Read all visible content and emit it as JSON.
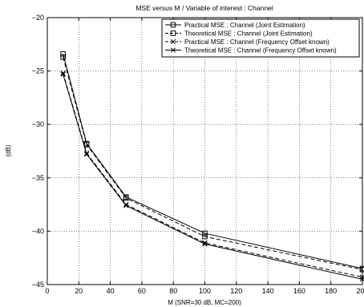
{
  "chart_data": {
    "type": "line",
    "title": "MSE versus M / Variable of interest :  Channel",
    "xlabel": "M (SNR=30 dB, MC=200)",
    "ylabel": "(dB)",
    "xlim": [
      0,
      200
    ],
    "ylim": [
      -45,
      -20
    ],
    "xticks": [
      0,
      20,
      40,
      60,
      80,
      100,
      120,
      140,
      160,
      180,
      200
    ],
    "yticks": [
      -45,
      -40,
      -35,
      -30,
      -25,
      -20
    ],
    "grid": true,
    "legend_position": "top-right",
    "x": [
      10,
      25,
      50,
      100,
      200
    ],
    "series": [
      {
        "name": "Practical MSE : Channel (Joint Estimation)",
        "values": [
          -23.4,
          -31.8,
          -36.8,
          -40.2,
          -43.5
        ],
        "marker": "square",
        "dash": "solid"
      },
      {
        "name": "Theoretical MSE : Channel (Joint Estimation)",
        "values": [
          -23.7,
          -31.9,
          -36.9,
          -40.5,
          -43.6
        ],
        "marker": "square",
        "dash": "dashed"
      },
      {
        "name": "Practical MSE : Channel (Frequency Offset  known)",
        "values": [
          -25.2,
          -32.7,
          -37.5,
          -41.1,
          -44.3
        ],
        "marker": "x",
        "dash": "dashed"
      },
      {
        "name": "Theoretical MSE : Channel (Frequency Offset  known)",
        "values": [
          -25.3,
          -32.8,
          -37.6,
          -41.2,
          -44.5
        ],
        "marker": "x",
        "dash": "solid"
      }
    ]
  }
}
